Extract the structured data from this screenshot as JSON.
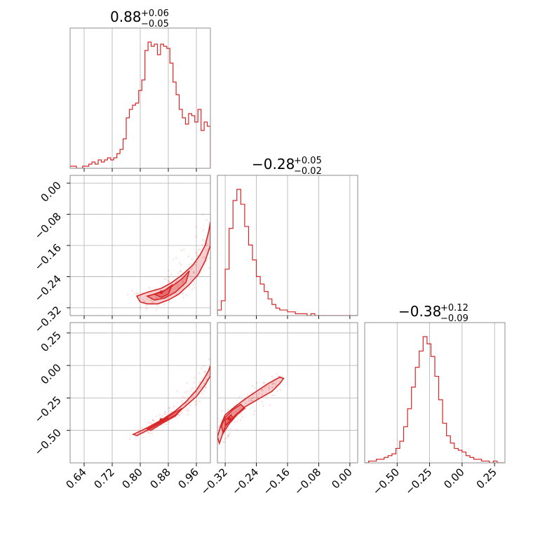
{
  "chart_data": {
    "type": "corner",
    "color": "#d62728",
    "parameters": [
      {
        "title": {
          "value": "0.88",
          "plus": "+0.06",
          "minus": "−0.05"
        },
        "range": [
          0.6,
          1.0
        ],
        "ticks": [
          0.64,
          0.72,
          0.8,
          0.88,
          0.96
        ],
        "tick_labels": [
          "0.64",
          "0.72",
          "0.80",
          "0.88",
          "0.96"
        ],
        "hist": [
          1,
          1,
          0,
          0,
          1,
          1,
          2,
          3,
          2,
          4,
          3,
          4,
          5,
          4,
          5,
          7,
          9,
          14,
          24,
          28,
          30,
          31,
          37,
          42,
          56,
          60,
          58,
          59,
          54,
          59,
          58,
          57,
          50,
          41,
          35,
          28,
          24,
          21,
          26,
          25,
          22,
          28,
          18,
          22,
          20
        ],
        "hist_edges": [
          0.6,
          1.0
        ]
      },
      {
        "title": {
          "value": "−0.28",
          "plus": "+0.05",
          "minus": "−0.02"
        },
        "range": [
          -0.34,
          0.02
        ],
        "ticks": [
          -0.32,
          -0.24,
          -0.16,
          -0.08,
          0.0
        ],
        "tick_labels": [
          "−0.32",
          "−0.24",
          "−0.16",
          "−0.08",
          "0.00"
        ],
        "hist": [
          3,
          8,
          25,
          47,
          62,
          68,
          60,
          48,
          38,
          30,
          21,
          17,
          13,
          9,
          6,
          4,
          3,
          3,
          2,
          2,
          1,
          1,
          1,
          0,
          1,
          0,
          0,
          0,
          0,
          0,
          0,
          0,
          0,
          0,
          0,
          0
        ],
        "hist_edges": [
          -0.34,
          0.02
        ]
      },
      {
        "title": {
          "value": "−0.38",
          "plus": "+0.12",
          "minus": "−0.09"
        },
        "range": [
          -0.75,
          0.33
        ],
        "ticks": [
          -0.5,
          -0.25,
          0.0,
          0.25
        ],
        "tick_labels": [
          "−0.50",
          "−0.25",
          "0.00",
          "0.25"
        ],
        "hist": [
          0,
          1,
          1,
          2,
          2,
          3,
          4,
          5,
          8,
          12,
          20,
          30,
          42,
          53,
          62,
          70,
          66,
          59,
          48,
          35,
          22,
          15,
          11,
          8,
          7,
          6,
          4,
          3,
          2,
          2,
          1,
          1,
          0,
          1,
          0,
          0
        ],
        "hist_edges": [
          -0.75,
          0.33
        ]
      }
    ],
    "pairs": [
      {
        "row": 1,
        "col": 0,
        "contours": [
          [
            [
              0.79,
              -0.29
            ],
            [
              0.82,
              -0.28
            ],
            [
              0.86,
              -0.27
            ],
            [
              0.89,
              -0.255
            ],
            [
              0.92,
              -0.235
            ],
            [
              0.95,
              -0.21
            ],
            [
              0.97,
              -0.185
            ],
            [
              0.985,
              -0.16
            ],
            [
              0.995,
              -0.125
            ],
            [
              1.0,
              -0.1
            ],
            [
              1.0,
              -0.16
            ],
            [
              0.985,
              -0.2
            ],
            [
              0.965,
              -0.235
            ],
            [
              0.94,
              -0.26
            ],
            [
              0.91,
              -0.285
            ],
            [
              0.88,
              -0.3
            ],
            [
              0.85,
              -0.31
            ],
            [
              0.82,
              -0.31
            ],
            [
              0.8,
              -0.305
            ]
          ],
          [
            [
              0.82,
              -0.29
            ],
            [
              0.86,
              -0.28
            ],
            [
              0.89,
              -0.265
            ],
            [
              0.92,
              -0.245
            ],
            [
              0.94,
              -0.225
            ],
            [
              0.93,
              -0.255
            ],
            [
              0.9,
              -0.28
            ],
            [
              0.87,
              -0.295
            ],
            [
              0.84,
              -0.3
            ]
          ],
          [
            [
              0.84,
              -0.285
            ],
            [
              0.87,
              -0.275
            ],
            [
              0.89,
              -0.262
            ],
            [
              0.88,
              -0.285
            ],
            [
              0.86,
              -0.293
            ]
          ]
        ],
        "core": [
          0.86,
          -0.28
        ]
      },
      {
        "row": 2,
        "col": 0,
        "contours": [
          [
            [
              0.78,
              -0.53
            ],
            [
              0.82,
              -0.48
            ],
            [
              0.86,
              -0.42
            ],
            [
              0.9,
              -0.35
            ],
            [
              0.93,
              -0.28
            ],
            [
              0.96,
              -0.19
            ],
            [
              0.98,
              -0.11
            ],
            [
              0.995,
              -0.04
            ],
            [
              1.0,
              0.0
            ],
            [
              1.0,
              -0.08
            ],
            [
              0.985,
              -0.15
            ],
            [
              0.96,
              -0.24
            ],
            [
              0.93,
              -0.31
            ],
            [
              0.9,
              -0.38
            ],
            [
              0.86,
              -0.44
            ],
            [
              0.82,
              -0.5
            ],
            [
              0.79,
              -0.54
            ]
          ],
          [
            [
              0.82,
              -0.49
            ],
            [
              0.86,
              -0.43
            ],
            [
              0.9,
              -0.36
            ],
            [
              0.92,
              -0.33
            ],
            [
              0.9,
              -0.39
            ],
            [
              0.86,
              -0.45
            ],
            [
              0.83,
              -0.5
            ]
          ],
          [
            [
              0.85,
              -0.44
            ],
            [
              0.88,
              -0.4
            ],
            [
              0.87,
              -0.42
            ],
            [
              0.85,
              -0.45
            ]
          ]
        ],
        "core": [
          0.86,
          -0.42
        ]
      },
      {
        "row": 2,
        "col": 1,
        "contours": [
          [
            [
              -0.335,
              -0.6
            ],
            [
              -0.32,
              -0.47
            ],
            [
              -0.3,
              -0.4
            ],
            [
              -0.27,
              -0.32
            ],
            [
              -0.23,
              -0.25
            ],
            [
              -0.2,
              -0.2
            ],
            [
              -0.18,
              -0.14
            ],
            [
              -0.17,
              -0.1
            ],
            [
              -0.18,
              -0.09
            ],
            [
              -0.21,
              -0.14
            ],
            [
              -0.24,
              -0.2
            ],
            [
              -0.27,
              -0.26
            ],
            [
              -0.3,
              -0.33
            ],
            [
              -0.32,
              -0.38
            ],
            [
              -0.33,
              -0.45
            ],
            [
              -0.34,
              -0.55
            ]
          ],
          [
            [
              -0.325,
              -0.52
            ],
            [
              -0.31,
              -0.45
            ],
            [
              -0.29,
              -0.38
            ],
            [
              -0.27,
              -0.33
            ],
            [
              -0.28,
              -0.3
            ],
            [
              -0.3,
              -0.34
            ],
            [
              -0.32,
              -0.4
            ],
            [
              -0.33,
              -0.47
            ]
          ],
          [
            [
              -0.32,
              -0.46
            ],
            [
              -0.3,
              -0.41
            ],
            [
              -0.305,
              -0.38
            ],
            [
              -0.32,
              -0.42
            ]
          ]
        ],
        "core": [
          -0.31,
          -0.41
        ]
      }
    ]
  }
}
